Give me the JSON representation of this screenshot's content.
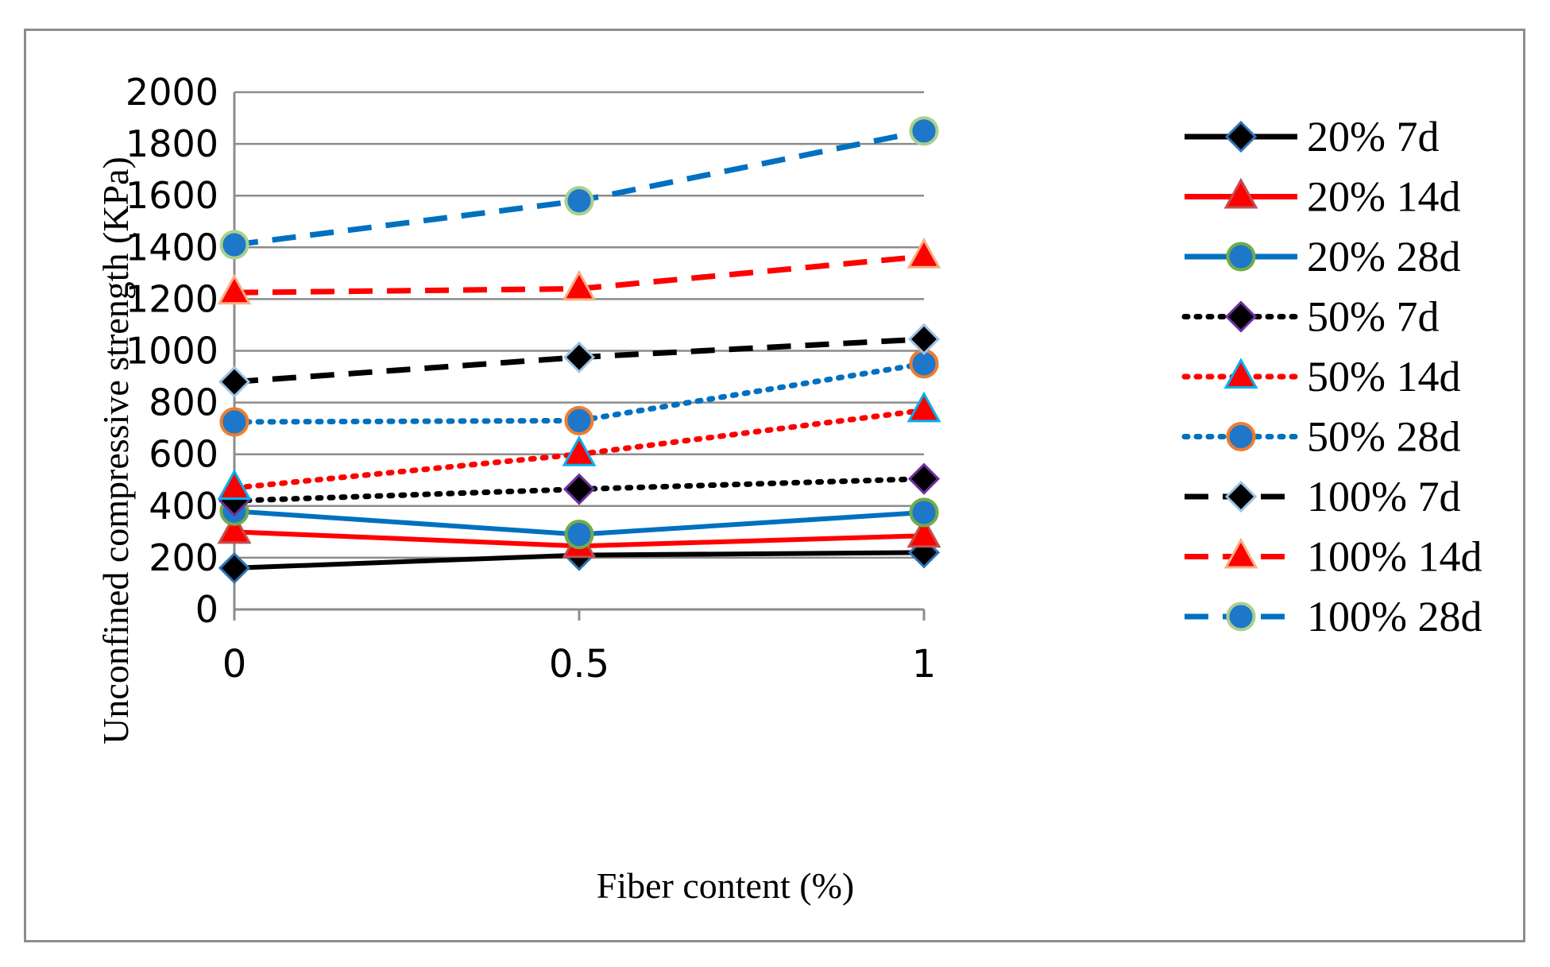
{
  "chart_data": {
    "type": "line",
    "title": "",
    "xlabel": "Fiber content (%)",
    "ylabel": "Unconfined compressive strength (KPa)",
    "x": [
      0,
      0.5,
      1
    ],
    "x_tick_labels": [
      "0",
      "0.5",
      "1"
    ],
    "ylim": [
      0,
      2000
    ],
    "y_ticks": [
      0,
      200,
      400,
      600,
      800,
      1000,
      1200,
      1400,
      1600,
      1800,
      2000
    ],
    "grid": "horizontal",
    "legend_position": "right",
    "series": [
      {
        "name": "20% 7d",
        "values": [
          160,
          210,
          220
        ],
        "color": "#000000",
        "line": "solid",
        "marker": "diamond",
        "marker_fill": "#000000",
        "marker_edge": "#2e75b6"
      },
      {
        "name": "20% 14d",
        "values": [
          300,
          245,
          285
        ],
        "color": "#ff0000",
        "line": "solid",
        "marker": "triangle",
        "marker_fill": "#ff0000",
        "marker_edge": "#c0504d"
      },
      {
        "name": "20% 28d",
        "values": [
          380,
          290,
          375
        ],
        "color": "#0070c0",
        "line": "solid",
        "marker": "circle",
        "marker_fill": "#1f77c9",
        "marker_edge": "#70ad47"
      },
      {
        "name": "50% 7d",
        "values": [
          420,
          465,
          505
        ],
        "color": "#000000",
        "line": "dotted",
        "marker": "diamond",
        "marker_fill": "#000000",
        "marker_edge": "#7030a0"
      },
      {
        "name": "50% 14d",
        "values": [
          470,
          600,
          770
        ],
        "color": "#ff0000",
        "line": "dotted",
        "marker": "triangle",
        "marker_fill": "#ff0000",
        "marker_edge": "#00b0f0"
      },
      {
        "name": "50% 28d",
        "values": [
          725,
          730,
          950
        ],
        "color": "#0070c0",
        "line": "dotted",
        "marker": "circle",
        "marker_fill": "#1f77c9",
        "marker_edge": "#ed7d31"
      },
      {
        "name": "100% 7d",
        "values": [
          880,
          975,
          1045
        ],
        "color": "#000000",
        "line": "dashed",
        "marker": "diamond",
        "marker_fill": "#000000",
        "marker_edge": "#9dc3e6"
      },
      {
        "name": "100% 14d",
        "values": [
          1225,
          1240,
          1365
        ],
        "color": "#ff0000",
        "line": "dashed",
        "marker": "triangle",
        "marker_fill": "#ff0000",
        "marker_edge": "#f4b183"
      },
      {
        "name": "100% 28d",
        "values": [
          1410,
          1580,
          1850
        ],
        "color": "#0070c0",
        "line": "dashed",
        "marker": "circle",
        "marker_fill": "#1f77c9",
        "marker_edge": "#a9d18e"
      }
    ]
  }
}
